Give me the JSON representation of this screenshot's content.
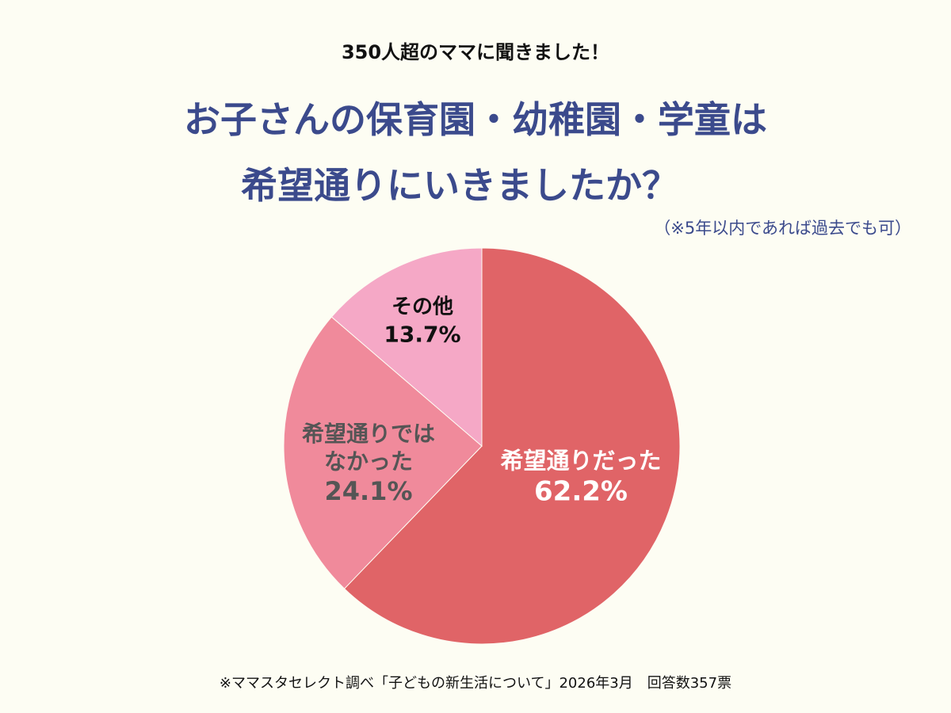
{
  "chart_data": {
    "type": "pie",
    "subtitle": "350人超のママに聞きました！",
    "title": [
      "お子さんの保育園・幼稚園・学童は",
      "希望通りにいきましたか？"
    ],
    "note": "（※5年以内であれば過去でも可）",
    "categories": [
      "希望通りだった",
      "希望通りではなかった",
      "その他"
    ],
    "values": [
      62.2,
      24.1,
      13.7
    ],
    "value_labels": [
      "62.2%",
      "24.1%",
      "13.7%"
    ],
    "colors": [
      "#e06467",
      "#f08a9b",
      "#f5a8c6"
    ],
    "label_colors": [
      "#ffffff",
      "#555555",
      "#111111"
    ],
    "source": "※ママスタセレクト調べ「子どもの新生活について」2026年3月　回答数357票"
  }
}
